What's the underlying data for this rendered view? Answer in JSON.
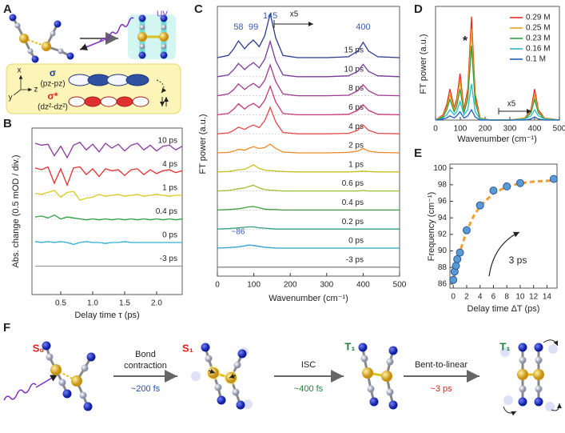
{
  "panel_labels": [
    "A",
    "B",
    "C",
    "D",
    "E",
    "F"
  ],
  "panel_a": {
    "uv": "UV",
    "axes": [
      "x",
      "y",
      "z"
    ],
    "sigma": "σ",
    "sigma_orbital": "(pz-pz)",
    "sigma_star": "σ*",
    "sigma_star_orbital": "(dz²-dz²)"
  },
  "panel_f": {
    "states": [
      "S₀",
      "S₁",
      "T₁",
      "T₁"
    ],
    "steps": [
      {
        "label": [
          "Bond",
          "contraction"
        ],
        "time": "~200 fs"
      },
      {
        "label": [
          "ISC"
        ],
        "time": "~400 fs"
      },
      {
        "label": [
          "Bent-to-linear"
        ],
        "time": "~3 ps"
      }
    ]
  },
  "chart_data": [
    {
      "type": "line",
      "xlabel": "Delay time τ (ps)",
      "ylabel": "Abs. change (0.5 mOD / div.)",
      "xlim": [
        0.05,
        2.4
      ],
      "xticks": [
        0.5,
        {
          "value": 1.0,
          "label": "1.0"
        },
        1.5,
        {
          "value": 2.0,
          "label": "2.0"
        }
      ],
      "x": [
        0.1,
        0.2,
        0.3,
        0.4,
        0.5,
        0.6,
        0.7,
        0.8,
        0.9,
        1.0,
        1.1,
        1.2,
        1.3,
        1.4,
        1.5,
        1.6,
        1.7,
        1.8,
        1.9,
        2.0,
        2.1,
        2.2,
        2.3,
        2.4
      ],
      "series": [
        {
          "name": "10 ps",
          "color": "#8a3aa0",
          "values": [
            0.5,
            0.3,
            0.4,
            -0.8,
            0.2,
            -1.0,
            0.3,
            0.6,
            -0.2,
            0.4,
            -0.4,
            0.5,
            0.0,
            0.4,
            -0.3,
            0.3,
            0.5,
            -0.2,
            0.3,
            -0.3,
            0.2,
            0.3,
            -0.2,
            0.2
          ]
        },
        {
          "name": "4 ps",
          "color": "#e03030",
          "values": [
            0.4,
            0.2,
            0.5,
            -1.2,
            0.3,
            -1.4,
            0.4,
            0.5,
            -0.3,
            0.3,
            -0.5,
            0.3,
            0.1,
            0.2,
            -0.4,
            0.2,
            0.3,
            -0.3,
            0.2,
            -0.2,
            0.1,
            0.2,
            -0.1,
            0.1
          ]
        },
        {
          "name": "1 ps",
          "color": "#d8cc20",
          "values": [
            0.2,
            0.1,
            0.3,
            0.5,
            -0.2,
            0.3,
            0.4,
            -0.5,
            -0.3,
            -0.2,
            0.1,
            -0.1,
            0.0,
            0.1,
            -0.1,
            0.0,
            0.1,
            -0.1,
            0.0,
            0.1,
            0.0,
            -0.1,
            0.0,
            0.0
          ]
        },
        {
          "name": "0.4 ps",
          "color": "#30a040",
          "values": [
            0.2,
            0.3,
            0.1,
            0.4,
            0.0,
            0.2,
            0.1,
            0.0,
            -0.1,
            0.0,
            -0.1,
            0.0,
            -0.1,
            0.0,
            -0.1,
            0.0,
            -0.1,
            0.0,
            -0.1,
            0.0,
            -0.1,
            0.0,
            -0.1,
            0.0
          ]
        },
        {
          "name": "0 ps",
          "color": "#30b0d8",
          "values": [
            0.1,
            0.0,
            0.1,
            0.0,
            0.1,
            0.0,
            -0.2,
            0.0,
            0.1,
            0.0,
            0.0,
            -0.1,
            0.0,
            0.0,
            0.1,
            0.0,
            0.0,
            0.0,
            0.0,
            0.0,
            0.0,
            0.0,
            0.0,
            0.0
          ]
        },
        {
          "name": "-3 ps",
          "color": "#999999",
          "values": [
            0,
            0,
            0,
            0,
            0,
            0,
            0,
            0,
            0,
            0,
            0,
            0,
            0,
            0,
            0,
            0,
            0,
            0,
            0,
            0,
            0,
            0,
            0,
            0
          ]
        }
      ]
    },
    {
      "type": "line",
      "xlabel": "Wavenumber (cm⁻¹)",
      "ylabel": "FT power (a.u.)",
      "xlim": [
        0,
        500
      ],
      "xticks": [
        0,
        100,
        200,
        300,
        400,
        500
      ],
      "peak_labels": [
        58,
        99,
        145,
        400
      ],
      "annotations": [
        "x5",
        "~86"
      ],
      "x": [
        0,
        30,
        45,
        58,
        75,
        85,
        99,
        115,
        130,
        145,
        160,
        180,
        220,
        300,
        360,
        385,
        400,
        415,
        440,
        500
      ],
      "series": [
        {
          "name": "15 ps",
          "color": "#2b3a8c",
          "values": [
            0,
            0.05,
            0.2,
            0.38,
            0.2,
            0.3,
            0.4,
            0.25,
            0.5,
            1.0,
            0.45,
            0.05,
            0,
            0,
            0.02,
            0.15,
            0.35,
            0.15,
            0.02,
            0
          ]
        },
        {
          "name": "10 ps",
          "color": "#7b3a9a",
          "values": [
            0,
            0.04,
            0.16,
            0.3,
            0.16,
            0.24,
            0.32,
            0.2,
            0.4,
            0.8,
            0.36,
            0.04,
            0,
            0,
            0.02,
            0.12,
            0.28,
            0.12,
            0.02,
            0
          ]
        },
        {
          "name": "8 ps",
          "color": "#a03a90",
          "values": [
            0,
            0.04,
            0.14,
            0.27,
            0.14,
            0.21,
            0.28,
            0.18,
            0.35,
            0.7,
            0.32,
            0.04,
            0,
            0,
            0.01,
            0.11,
            0.25,
            0.11,
            0.01,
            0
          ]
        },
        {
          "name": "6 ps",
          "color": "#c8357a",
          "values": [
            0,
            0.03,
            0.13,
            0.25,
            0.13,
            0.2,
            0.26,
            0.16,
            0.33,
            0.65,
            0.29,
            0.03,
            0,
            0,
            0.01,
            0.1,
            0.23,
            0.1,
            0.01,
            0
          ]
        },
        {
          "name": "4 ps",
          "color": "#e04a4a",
          "values": [
            0,
            0.02,
            0.08,
            0.15,
            0.1,
            0.15,
            0.2,
            0.14,
            0.3,
            0.6,
            0.27,
            0.03,
            0,
            0,
            0.01,
            0.08,
            0.2,
            0.08,
            0.01,
            0
          ]
        },
        {
          "name": "2 ps",
          "color": "#e88a2a",
          "values": [
            0,
            0.01,
            0.04,
            0.08,
            0.06,
            0.1,
            0.14,
            0.1,
            0.12,
            0.2,
            0.1,
            0.02,
            0,
            0,
            0.01,
            0.04,
            0.1,
            0.04,
            0.01,
            0
          ]
        },
        {
          "name": "1 ps",
          "color": "#c8c020",
          "values": [
            0,
            0.01,
            0.03,
            0.05,
            0.06,
            0.1,
            0.16,
            0.08,
            0.04,
            0.03,
            0.02,
            0.01,
            0,
            0,
            0,
            0.01,
            0.02,
            0.01,
            0,
            0
          ]
        },
        {
          "name": "0.6 ps",
          "color": "#9ac030",
          "values": [
            0,
            0.01,
            0.03,
            0.05,
            0.07,
            0.1,
            0.13,
            0.07,
            0.03,
            0.02,
            0.01,
            0,
            0,
            0,
            0,
            0,
            0.01,
            0,
            0,
            0
          ]
        },
        {
          "name": "0.4 ps",
          "color": "#40a040",
          "values": [
            0,
            0.01,
            0.02,
            0.03,
            0.05,
            0.07,
            0.08,
            0.05,
            0.02,
            0.01,
            0.01,
            0,
            0,
            0,
            0,
            0,
            0,
            0,
            0,
            0
          ]
        },
        {
          "name": "0.2 ps",
          "color": "#30a080",
          "values": [
            0,
            0.01,
            0.02,
            0.03,
            0.04,
            0.05,
            0.05,
            0.03,
            0.02,
            0.01,
            0,
            0,
            0,
            0,
            0,
            0,
            0,
            0,
            0,
            0
          ]
        },
        {
          "name": "0 ps",
          "color": "#2a9fd0",
          "values": [
            0,
            0.01,
            0.02,
            0.03,
            0.05,
            0.07,
            0.06,
            0.04,
            0.02,
            0.01,
            0,
            0,
            0,
            0,
            0,
            0,
            0,
            0,
            0,
            0
          ]
        },
        {
          "name": "-3 ps",
          "color": "#888888",
          "values": [
            0,
            0,
            0,
            0,
            0,
            0,
            0,
            0,
            0,
            0,
            0,
            0,
            0,
            0,
            0,
            0,
            0,
            0,
            0,
            0
          ]
        }
      ]
    },
    {
      "type": "line",
      "xlabel": "Wavenumber (cm⁻¹)",
      "ylabel": "FT power (a.u.)",
      "xlim": [
        0,
        500
      ],
      "ylim": [
        0,
        1.1
      ],
      "xticks": [
        0,
        100,
        200,
        300,
        400,
        500
      ],
      "annotations": [
        "*",
        "x5"
      ],
      "legend": "top-right",
      "x": [
        0,
        30,
        45,
        58,
        75,
        85,
        99,
        115,
        130,
        145,
        160,
        180,
        220,
        300,
        360,
        385,
        400,
        415,
        440,
        500
      ],
      "series": [
        {
          "name": "0.29 M",
          "color": "#e03020",
          "values": [
            0,
            0.05,
            0.15,
            0.3,
            0.12,
            0.2,
            0.45,
            0.1,
            0.3,
            1.0,
            0.25,
            0.02,
            0,
            0,
            0.02,
            0.1,
            0.3,
            0.1,
            0.02,
            0
          ]
        },
        {
          "name": "0.25 M",
          "color": "#e8a020",
          "values": [
            0,
            0.04,
            0.12,
            0.25,
            0.1,
            0.17,
            0.38,
            0.08,
            0.25,
            0.88,
            0.2,
            0.02,
            0,
            0,
            0.02,
            0.08,
            0.25,
            0.08,
            0.02,
            0
          ]
        },
        {
          "name": "0.23 M",
          "color": "#30a040",
          "values": [
            0,
            0.03,
            0.1,
            0.2,
            0.08,
            0.13,
            0.3,
            0.07,
            0.2,
            0.72,
            0.17,
            0.01,
            0,
            0,
            0.01,
            0.07,
            0.2,
            0.07,
            0.01,
            0
          ]
        },
        {
          "name": "0.16 M",
          "color": "#30b8c8",
          "values": [
            0,
            0.02,
            0.05,
            0.1,
            0.05,
            0.08,
            0.18,
            0.05,
            0.1,
            0.35,
            0.08,
            0.01,
            0,
            0,
            0.01,
            0.04,
            0.1,
            0.04,
            0.01,
            0
          ]
        },
        {
          "name": "0.1 M",
          "color": "#2060b0",
          "values": [
            0,
            0.01,
            0.02,
            0.04,
            0.02,
            0.04,
            0.08,
            0.02,
            0.04,
            0.1,
            0.03,
            0,
            0,
            0,
            0,
            0.01,
            0.03,
            0.01,
            0,
            0
          ]
        }
      ]
    },
    {
      "type": "scatter",
      "xlabel": "Delay time ΔT (ps)",
      "ylabel": "Frequency (cm⁻¹)",
      "xlim": [
        -0.5,
        15.5
      ],
      "ylim": [
        85.5,
        100.5
      ],
      "xticks": [
        0,
        2,
        4,
        6,
        8,
        10,
        12,
        14
      ],
      "yticks": [
        86,
        88,
        90,
        92,
        94,
        96,
        98,
        100
      ],
      "x": [
        0,
        0.2,
        0.4,
        0.6,
        1,
        2,
        4,
        6,
        8,
        10,
        15
      ],
      "values": [
        86.5,
        87.5,
        88.2,
        89,
        89.8,
        92.5,
        95.5,
        97.3,
        97.8,
        98.2,
        98.7
      ],
      "color": "#5b9bd5",
      "fit": {
        "color": "#f0a030",
        "x": [
          0,
          1,
          2,
          3,
          4,
          6,
          8,
          10,
          12,
          15
        ],
        "values": [
          86.5,
          89.93,
          92.39,
          94.15,
          95.41,
          96.96,
          97.76,
          98.18,
          98.38,
          98.52
        ]
      },
      "annotations": [
        "3 ps"
      ]
    }
  ]
}
